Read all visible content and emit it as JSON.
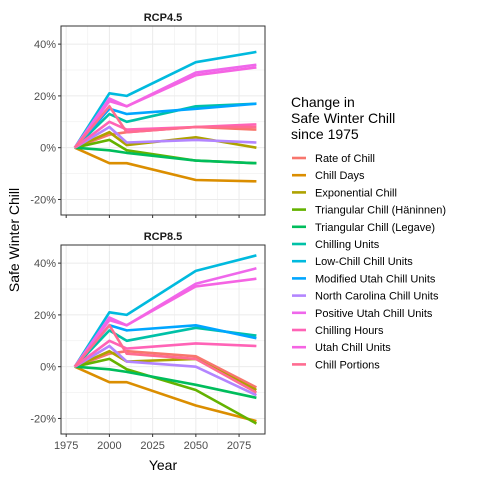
{
  "chart_data": {
    "type": "line",
    "ylabel": "Safe Winter Chill",
    "xlabel": "Year",
    "x": [
      1980,
      2000,
      2010,
      2050,
      2085
    ],
    "x_ticks": [
      1975,
      2000,
      2025,
      2050,
      2075
    ],
    "x_tick_labels": [
      "1975",
      "2000",
      "2025",
      "2050",
      "2075"
    ],
    "xlim": [
      1972,
      2090
    ],
    "ylim": [
      -26,
      47
    ],
    "y_ticks": [
      -20,
      0,
      20,
      40
    ],
    "y_tick_labels": [
      "-20%",
      "0%",
      "20%",
      "40%"
    ],
    "grid": true,
    "legend": {
      "title_lines": [
        "Change in",
        "Safe Winter Chill",
        "since 1975"
      ],
      "placement": "right"
    },
    "series_meta": [
      {
        "name": "Rate of Chill",
        "color": "#F8766D"
      },
      {
        "name": "Chill Days",
        "color": "#DB8E00"
      },
      {
        "name": "Exponential Chill",
        "color": "#AEA200"
      },
      {
        "name": "Triangular Chill (Häninnen)",
        "color": "#64B200"
      },
      {
        "name": "Triangular Chill (Legave)",
        "color": "#00BD5C"
      },
      {
        "name": "Chilling Units",
        "color": "#00C1A7"
      },
      {
        "name": "Low-Chill Chill Units",
        "color": "#00BADE"
      },
      {
        "name": "Modified Utah Chill Units",
        "color": "#00A6FF"
      },
      {
        "name": "North Carolina Chill Units",
        "color": "#B385FF"
      },
      {
        "name": "Positive Utah Chill Units",
        "color": "#EF67EB"
      },
      {
        "name": "Chilling Hours",
        "color": "#FF63B6"
      },
      {
        "name": "Utah Chill Units",
        "color": "#F564E3"
      },
      {
        "name": "Chill Portions",
        "color": "#FF6C91"
      }
    ],
    "panels": [
      {
        "label": "RCP4.5",
        "values": [
          [
            0,
            5,
            6,
            8,
            7
          ],
          [
            0,
            -6,
            -6,
            -12.5,
            -13
          ],
          [
            0,
            6,
            1,
            4,
            0
          ],
          [
            0,
            3,
            -1,
            -5,
            -6
          ],
          [
            0,
            -1,
            -2,
            -5,
            -6
          ],
          [
            0,
            13,
            10,
            16,
            17
          ],
          [
            0,
            21,
            20,
            33,
            37
          ],
          [
            0,
            15,
            13,
            15,
            17
          ],
          [
            0,
            8,
            2,
            3,
            2
          ],
          [
            0,
            19,
            16,
            29,
            32
          ],
          [
            0,
            10,
            7,
            8,
            9
          ],
          [
            0,
            18,
            16,
            28,
            31
          ],
          [
            0,
            16,
            6,
            8,
            8
          ]
        ]
      },
      {
        "label": "RCP8.5",
        "values": [
          [
            0,
            5,
            6,
            4,
            -8
          ],
          [
            0,
            -6,
            -6,
            -15,
            -21
          ],
          [
            0,
            6,
            2,
            3,
            -9
          ],
          [
            0,
            3,
            -1,
            -9,
            -22
          ],
          [
            0,
            -1,
            -2,
            -7,
            -12
          ],
          [
            0,
            14,
            10,
            15,
            12
          ],
          [
            0,
            21,
            20,
            37,
            43
          ],
          [
            0,
            16,
            14,
            16,
            11
          ],
          [
            0,
            8,
            2,
            0,
            -11
          ],
          [
            0,
            19,
            16,
            32,
            38
          ],
          [
            0,
            10,
            7,
            9,
            8
          ],
          [
            0,
            18,
            16,
            31,
            34
          ],
          [
            0,
            16,
            5,
            3,
            -10
          ]
        ]
      }
    ]
  }
}
